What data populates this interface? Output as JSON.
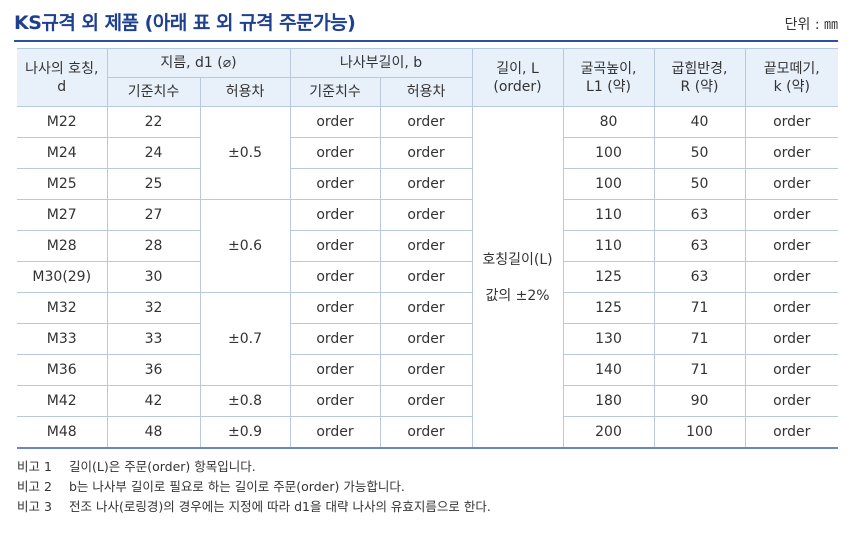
{
  "title": "KS규격 외 제품 (아래 표 외 규격 주문가능)",
  "unit": "단위 : ㎜",
  "headers": {
    "nominal": [
      "나사의 호칭,",
      "d"
    ],
    "diameter": "지름, d1 (⌀)",
    "thread": "나사부길이, b",
    "length": [
      "길이, L",
      "(order)"
    ],
    "bend": [
      "굴곡높이,",
      "L1 (약)"
    ],
    "radius": [
      "굽힘반경,",
      "R (약)"
    ],
    "end": [
      "끝모떼기,",
      "k (약)"
    ],
    "std": "기준치수",
    "tol": "허용차"
  },
  "rows": [
    {
      "d": "M22",
      "d1": "22",
      "b": "order",
      "bt": "order",
      "L1": "80",
      "R": "40",
      "k": "order"
    },
    {
      "d": "M24",
      "d1": "24",
      "b": "order",
      "bt": "order",
      "L1": "100",
      "R": "50",
      "k": "order"
    },
    {
      "d": "M25",
      "d1": "25",
      "b": "order",
      "bt": "order",
      "L1": "100",
      "R": "50",
      "k": "order"
    },
    {
      "d": "M27",
      "d1": "27",
      "b": "order",
      "bt": "order",
      "L1": "110",
      "R": "63",
      "k": "order"
    },
    {
      "d": "M28",
      "d1": "28",
      "b": "order",
      "bt": "order",
      "L1": "110",
      "R": "63",
      "k": "order"
    },
    {
      "d": "M30(29)",
      "d1": "30",
      "b": "order",
      "bt": "order",
      "L1": "125",
      "R": "63",
      "k": "order"
    },
    {
      "d": "M32",
      "d1": "32",
      "b": "order",
      "bt": "order",
      "L1": "125",
      "R": "71",
      "k": "order"
    },
    {
      "d": "M33",
      "d1": "33",
      "b": "order",
      "bt": "order",
      "L1": "130",
      "R": "71",
      "k": "order"
    },
    {
      "d": "M36",
      "d1": "36",
      "b": "order",
      "bt": "order",
      "L1": "140",
      "R": "71",
      "k": "order"
    },
    {
      "d": "M42",
      "d1": "42",
      "b": "order",
      "bt": "order",
      "L1": "180",
      "R": "90",
      "k": "order"
    },
    {
      "d": "M48",
      "d1": "48",
      "b": "order",
      "bt": "order",
      "L1": "200",
      "R": "100",
      "k": "order"
    }
  ],
  "tolerances": [
    "±0.5",
    "±0.6",
    "±0.7",
    "±0.8",
    "±0.9"
  ],
  "length_text": [
    "호칭길이(L)",
    "값의 ±2%"
  ],
  "notes": [
    {
      "k": "비고 1",
      "v": "길이(L)은 주문(order) 항목입니다."
    },
    {
      "k": "비고 2",
      "v": "b는 나사부 길이로 필요로 하는 길이로 주문(order) 가능합니다."
    },
    {
      "k": "비고 3",
      "v": "전조 나사(로링경)의 경우에는 지정에 따라 d1을 대략 나사의 유효지름으로 한다."
    }
  ]
}
